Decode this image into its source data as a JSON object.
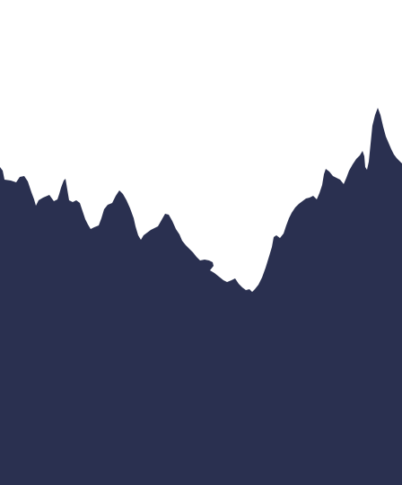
{
  "graphic": {
    "background_color": "#ffffff",
    "fill_color": "#2a3050",
    "subject": "mountain-ridge-silhouette"
  }
}
